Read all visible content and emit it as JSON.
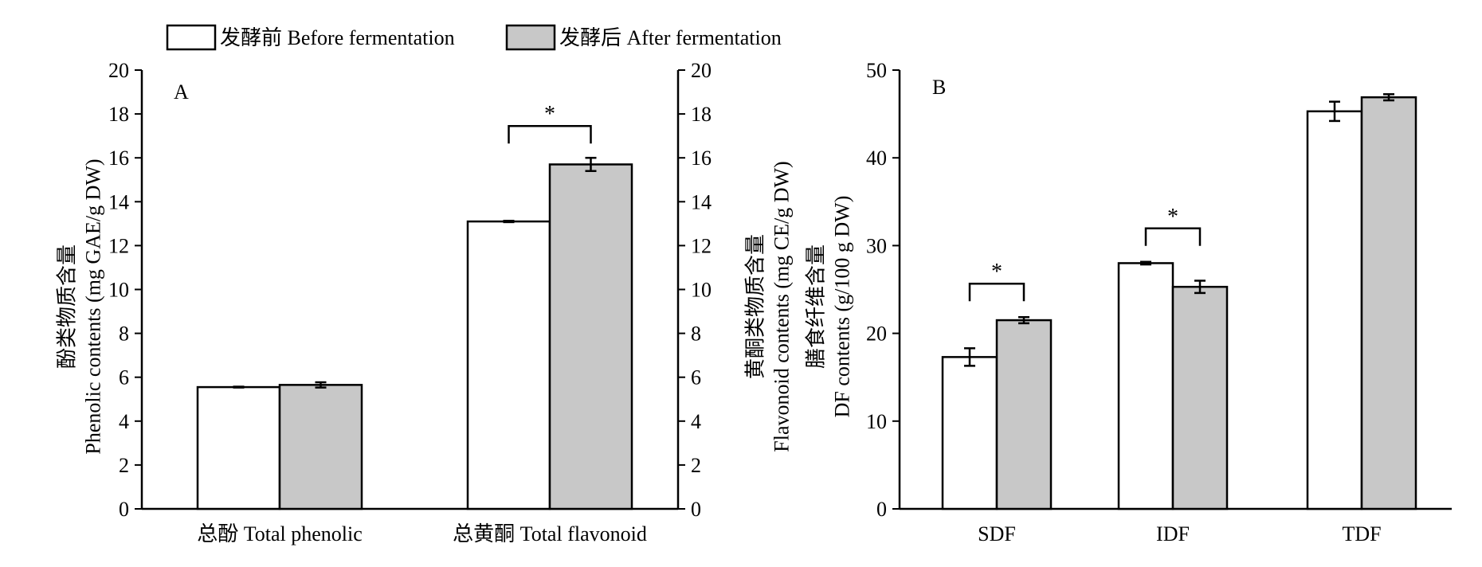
{
  "legend": {
    "before": "发酵前 Before fermentation",
    "after": "发酵后 After fermentation"
  },
  "colors": {
    "before": "#ffffff",
    "after": "#c8c8c8",
    "stroke": "#000000"
  },
  "chart_data": [
    {
      "panel": "A",
      "type": "bar",
      "categories": [
        "总酚 Total phenolic",
        "总黄酮 Total flavonoid"
      ],
      "series": [
        {
          "name": "发酵前 Before fermentation",
          "values": [
            5.55,
            13.1
          ],
          "errors": [
            0.02,
            0.03
          ]
        },
        {
          "name": "发酵后 After fermentation",
          "values": [
            5.65,
            15.7
          ],
          "errors": [
            0.12,
            0.3
          ]
        }
      ],
      "ylabel_left": "酚类物质含量\nPhenolic contents (mg GAE/g DW)",
      "ylabel_right": "黄酮类物质含量\nFlavonoid contents (mg CE/g DW)",
      "ylim": [
        0,
        20
      ],
      "yticks": [
        0,
        2,
        4,
        6,
        8,
        10,
        12,
        14,
        16,
        18,
        20
      ],
      "significance": [
        {
          "category": 1,
          "label": "*"
        }
      ],
      "grid": false
    },
    {
      "panel": "B",
      "type": "bar",
      "categories": [
        "SDF",
        "IDF",
        "TDF"
      ],
      "series": [
        {
          "name": "发酵前 Before fermentation",
          "values": [
            17.3,
            28.0,
            45.3
          ],
          "errors": [
            1.0,
            0.15,
            1.1
          ]
        },
        {
          "name": "发酵后 After fermentation",
          "values": [
            21.5,
            25.3,
            46.9
          ],
          "errors": [
            0.35,
            0.7,
            0.35
          ]
        }
      ],
      "ylabel": "膳食纤维含量\nDF contents (g/100 g DW)",
      "ylim": [
        0,
        50
      ],
      "yticks": [
        0,
        10,
        20,
        30,
        40,
        50
      ],
      "significance": [
        {
          "category": 0,
          "label": "*"
        },
        {
          "category": 1,
          "label": "*"
        }
      ],
      "grid": false
    }
  ]
}
